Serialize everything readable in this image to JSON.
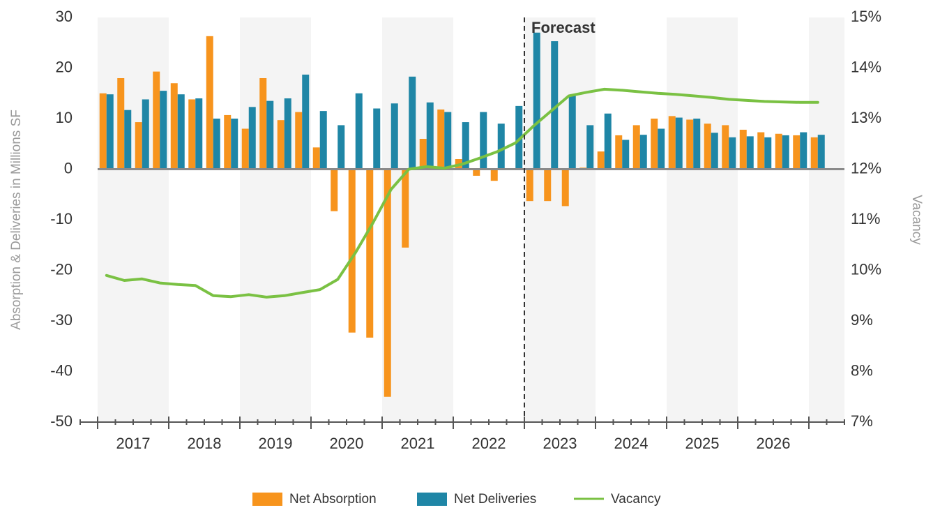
{
  "chart_data": {
    "type": "bar",
    "y_axis_label": "Absorption & Deliveries in Millions SF",
    "y2_axis_label": "Vacancy",
    "annotation": "Forecast",
    "years": [
      "2017",
      "2018",
      "2019",
      "2020",
      "2021",
      "2022",
      "2023",
      "2024",
      "2025",
      "2026"
    ],
    "ylim": [
      -50,
      30
    ],
    "yticks": [
      -50,
      -40,
      -30,
      -20,
      -10,
      0,
      10,
      20,
      30
    ],
    "y2lim": [
      7,
      15
    ],
    "y2ticks": [
      {
        "value": 7,
        "label": "7%"
      },
      {
        "value": 8,
        "label": "8%"
      },
      {
        "value": 9,
        "label": "9%"
      },
      {
        "value": 10,
        "label": "10%"
      },
      {
        "value": 11,
        "label": "11%"
      },
      {
        "value": 12,
        "label": "12%"
      },
      {
        "value": 13,
        "label": "13%"
      },
      {
        "value": 14,
        "label": "14%"
      },
      {
        "value": 15,
        "label": "15%"
      }
    ],
    "series": [
      {
        "name": "Net Absorption",
        "type": "bar",
        "color": "#f7941d",
        "values": [
          15,
          18,
          9.3,
          19.3,
          17,
          13.8,
          26.3,
          10.7,
          8,
          18,
          9.7,
          11.3,
          4.3,
          -8.3,
          -32.3,
          -33.3,
          -45,
          -15.5,
          6,
          11.8,
          2,
          -1.3,
          -2.3,
          0,
          -6.3,
          -6.3,
          -7.3,
          0.3,
          3.5,
          6.7,
          8.7,
          10,
          10.5,
          9.8,
          9,
          8.7,
          7.8,
          7.3,
          7,
          6.7,
          6.3
        ]
      },
      {
        "name": "Net Deliveries",
        "type": "bar",
        "color": "#1f86a6",
        "values": [
          14.8,
          11.7,
          13.8,
          15.5,
          14.8,
          14,
          10,
          10,
          12.3,
          13.5,
          14,
          18.7,
          11.5,
          8.7,
          15,
          12,
          13,
          18.3,
          13.2,
          11.3,
          9.3,
          11.3,
          9,
          12.5,
          27,
          25.3,
          14.5,
          8.7,
          11,
          5.8,
          6.8,
          8,
          10.2,
          10,
          7.2,
          6.3,
          6.5,
          6.3,
          6.7,
          7.3,
          6.8
        ]
      },
      {
        "name": "Vacancy",
        "type": "line",
        "axis": "y2",
        "color": "#7ac143",
        "values": [
          9.9,
          9.8,
          9.83,
          9.75,
          9.72,
          9.7,
          9.5,
          9.48,
          9.52,
          9.47,
          9.5,
          9.56,
          9.62,
          9.82,
          10.35,
          10.95,
          11.6,
          12.0,
          12.05,
          12.02,
          12.1,
          12.22,
          12.35,
          12.52,
          12.85,
          13.15,
          13.45,
          13.52,
          13.58,
          13.56,
          13.53,
          13.5,
          13.48,
          13.45,
          13.42,
          13.38,
          13.36,
          13.34,
          13.33,
          13.32,
          13.32
        ]
      }
    ]
  }
}
